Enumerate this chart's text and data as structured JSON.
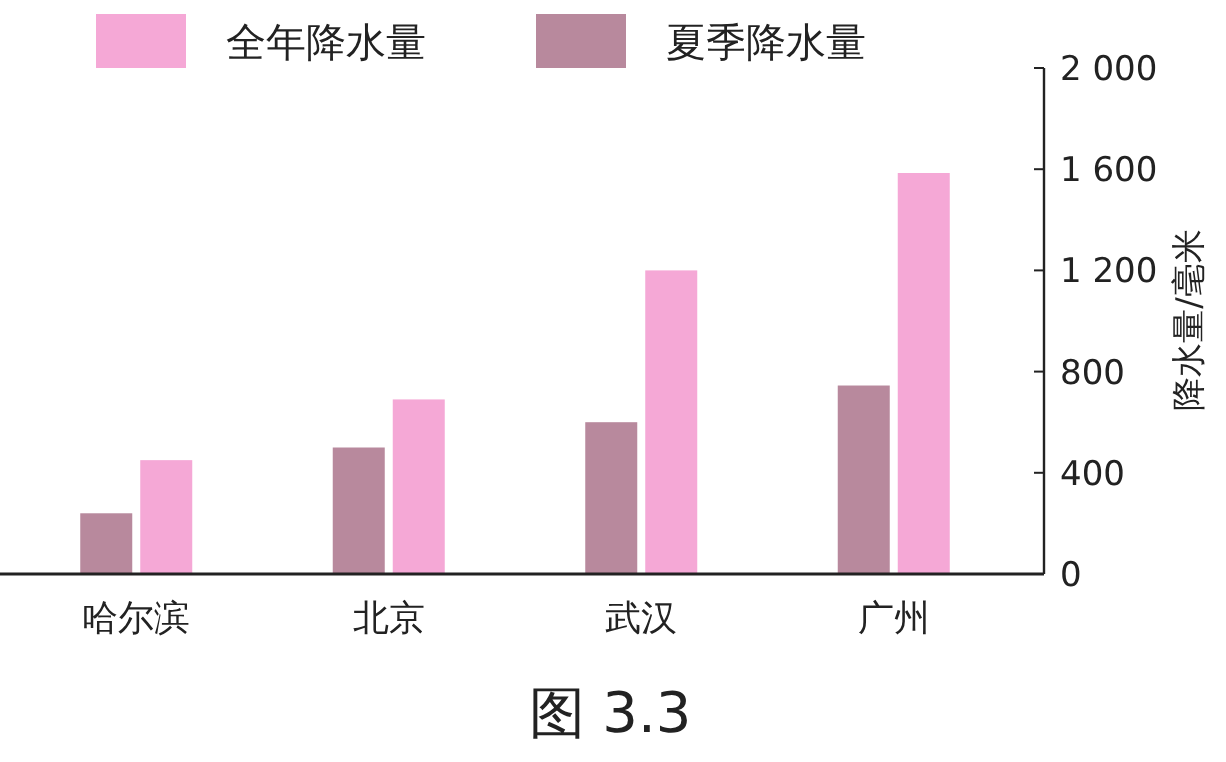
{
  "chart_data": {
    "type": "bar",
    "categories": [
      "哈尔滨",
      "北京",
      "武汉",
      "广州"
    ],
    "series": [
      {
        "name": "全年降水量",
        "color": "#f5a8d6",
        "values": [
          450,
          690,
          1200,
          1585
        ]
      },
      {
        "name": "夏季降水量",
        "color": "#b8899d",
        "values": [
          240,
          500,
          600,
          745
        ]
      }
    ],
    "ylabel": "降水量/毫米",
    "ylim": [
      0,
      2000
    ],
    "yticks": [
      0,
      400,
      800,
      {
        "value": 1200,
        "label": "1 200"
      },
      {
        "value": 1600,
        "label": "1 600"
      },
      {
        "value": 2000,
        "label": "2 000"
      }
    ],
    "grid": false,
    "legend": "top left",
    "annotations": [
      "图 3.3"
    ]
  }
}
